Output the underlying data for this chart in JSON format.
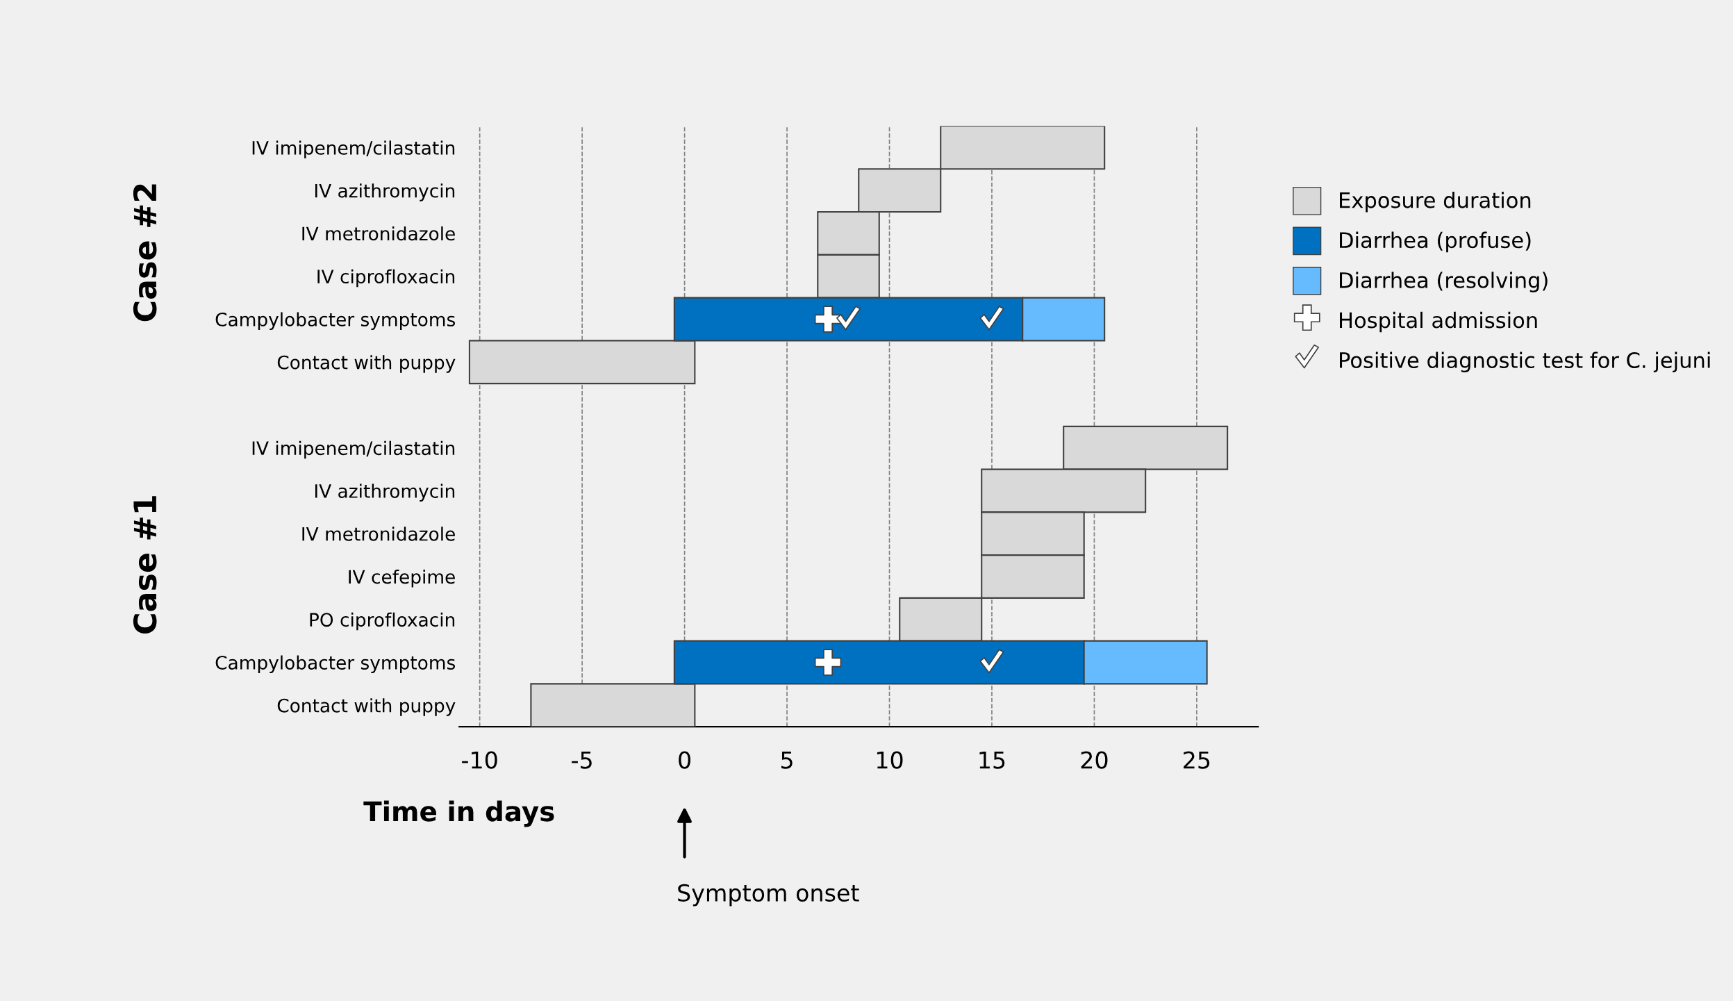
{
  "chart_data": {
    "type": "bar",
    "orientation": "horizontal",
    "xlabel": "Time in days",
    "categories": [
      "IV imipenem/cilastatin",
      "IV azithromycin",
      "IV metronidazole",
      "IV ciprofloxacin",
      "Campylobacter symptoms",
      "Contact with puppy",
      null,
      "IV imipenem/cilastatin",
      "IV azithromycin",
      "IV metronidazole",
      "IV cefepime",
      "PO ciprofloxacin",
      "Campylobacter symptoms",
      "Contact with puppy"
    ],
    "xlim": [
      -11,
      28
    ],
    "xticks": [
      -10,
      -5,
      0,
      5,
      10,
      15,
      20,
      25
    ],
    "grid": "x",
    "legend": "right",
    "annotations": [
      "Case #2",
      "Case #1",
      "Symptom onset"
    ],
    "series": [
      {
        "name": "Exposure duration",
        "color": "#d9d9d9",
        "base": [
          12.5,
          8.5,
          6.5,
          6.5,
          null,
          -10.5,
          null,
          18.5,
          14.5,
          14.5,
          14.5,
          10.5,
          null,
          -7.5
        ],
        "values": [
          8,
          4,
          3,
          3,
          null,
          11,
          null,
          8,
          8,
          5,
          5,
          4,
          null,
          8
        ]
      },
      {
        "name": "Diarrhea (profuse)",
        "color": "#0070c0",
        "base": [
          null,
          null,
          null,
          null,
          -0.5,
          null,
          null,
          null,
          null,
          null,
          null,
          null,
          -0.5,
          null
        ],
        "values": [
          null,
          null,
          null,
          null,
          17,
          null,
          null,
          null,
          null,
          null,
          null,
          null,
          20,
          null
        ]
      },
      {
        "name": "Diarrhea (resolving)",
        "color": "#66bbff",
        "base": [
          null,
          null,
          null,
          null,
          16.5,
          null,
          null,
          null,
          null,
          null,
          null,
          null,
          19.5,
          null
        ],
        "values": [
          null,
          null,
          null,
          null,
          4,
          null,
          null,
          null,
          null,
          null,
          null,
          null,
          6,
          null
        ]
      },
      {
        "name": "Hospital admission",
        "type": "scatter",
        "marker": "cross",
        "color": "#ffffff",
        "values": [
          null,
          null,
          null,
          null,
          7,
          null,
          null,
          null,
          null,
          null,
          null,
          null,
          7,
          null
        ]
      },
      {
        "name": "Positive diagnostic test for C. jejuni",
        "type": "scatter",
        "color": "#ffffff",
        "values": [
          null,
          null,
          null,
          null,
          8,
          null,
          null,
          null,
          null,
          null,
          null,
          null,
          15,
          null
        ]
      },
      {
        "type": "scatter",
        "color": "#ffffff",
        "values": [
          null,
          null,
          null,
          null,
          15,
          null,
          null,
          null,
          null,
          null,
          null,
          null,
          null,
          null
        ]
      }
    ]
  }
}
